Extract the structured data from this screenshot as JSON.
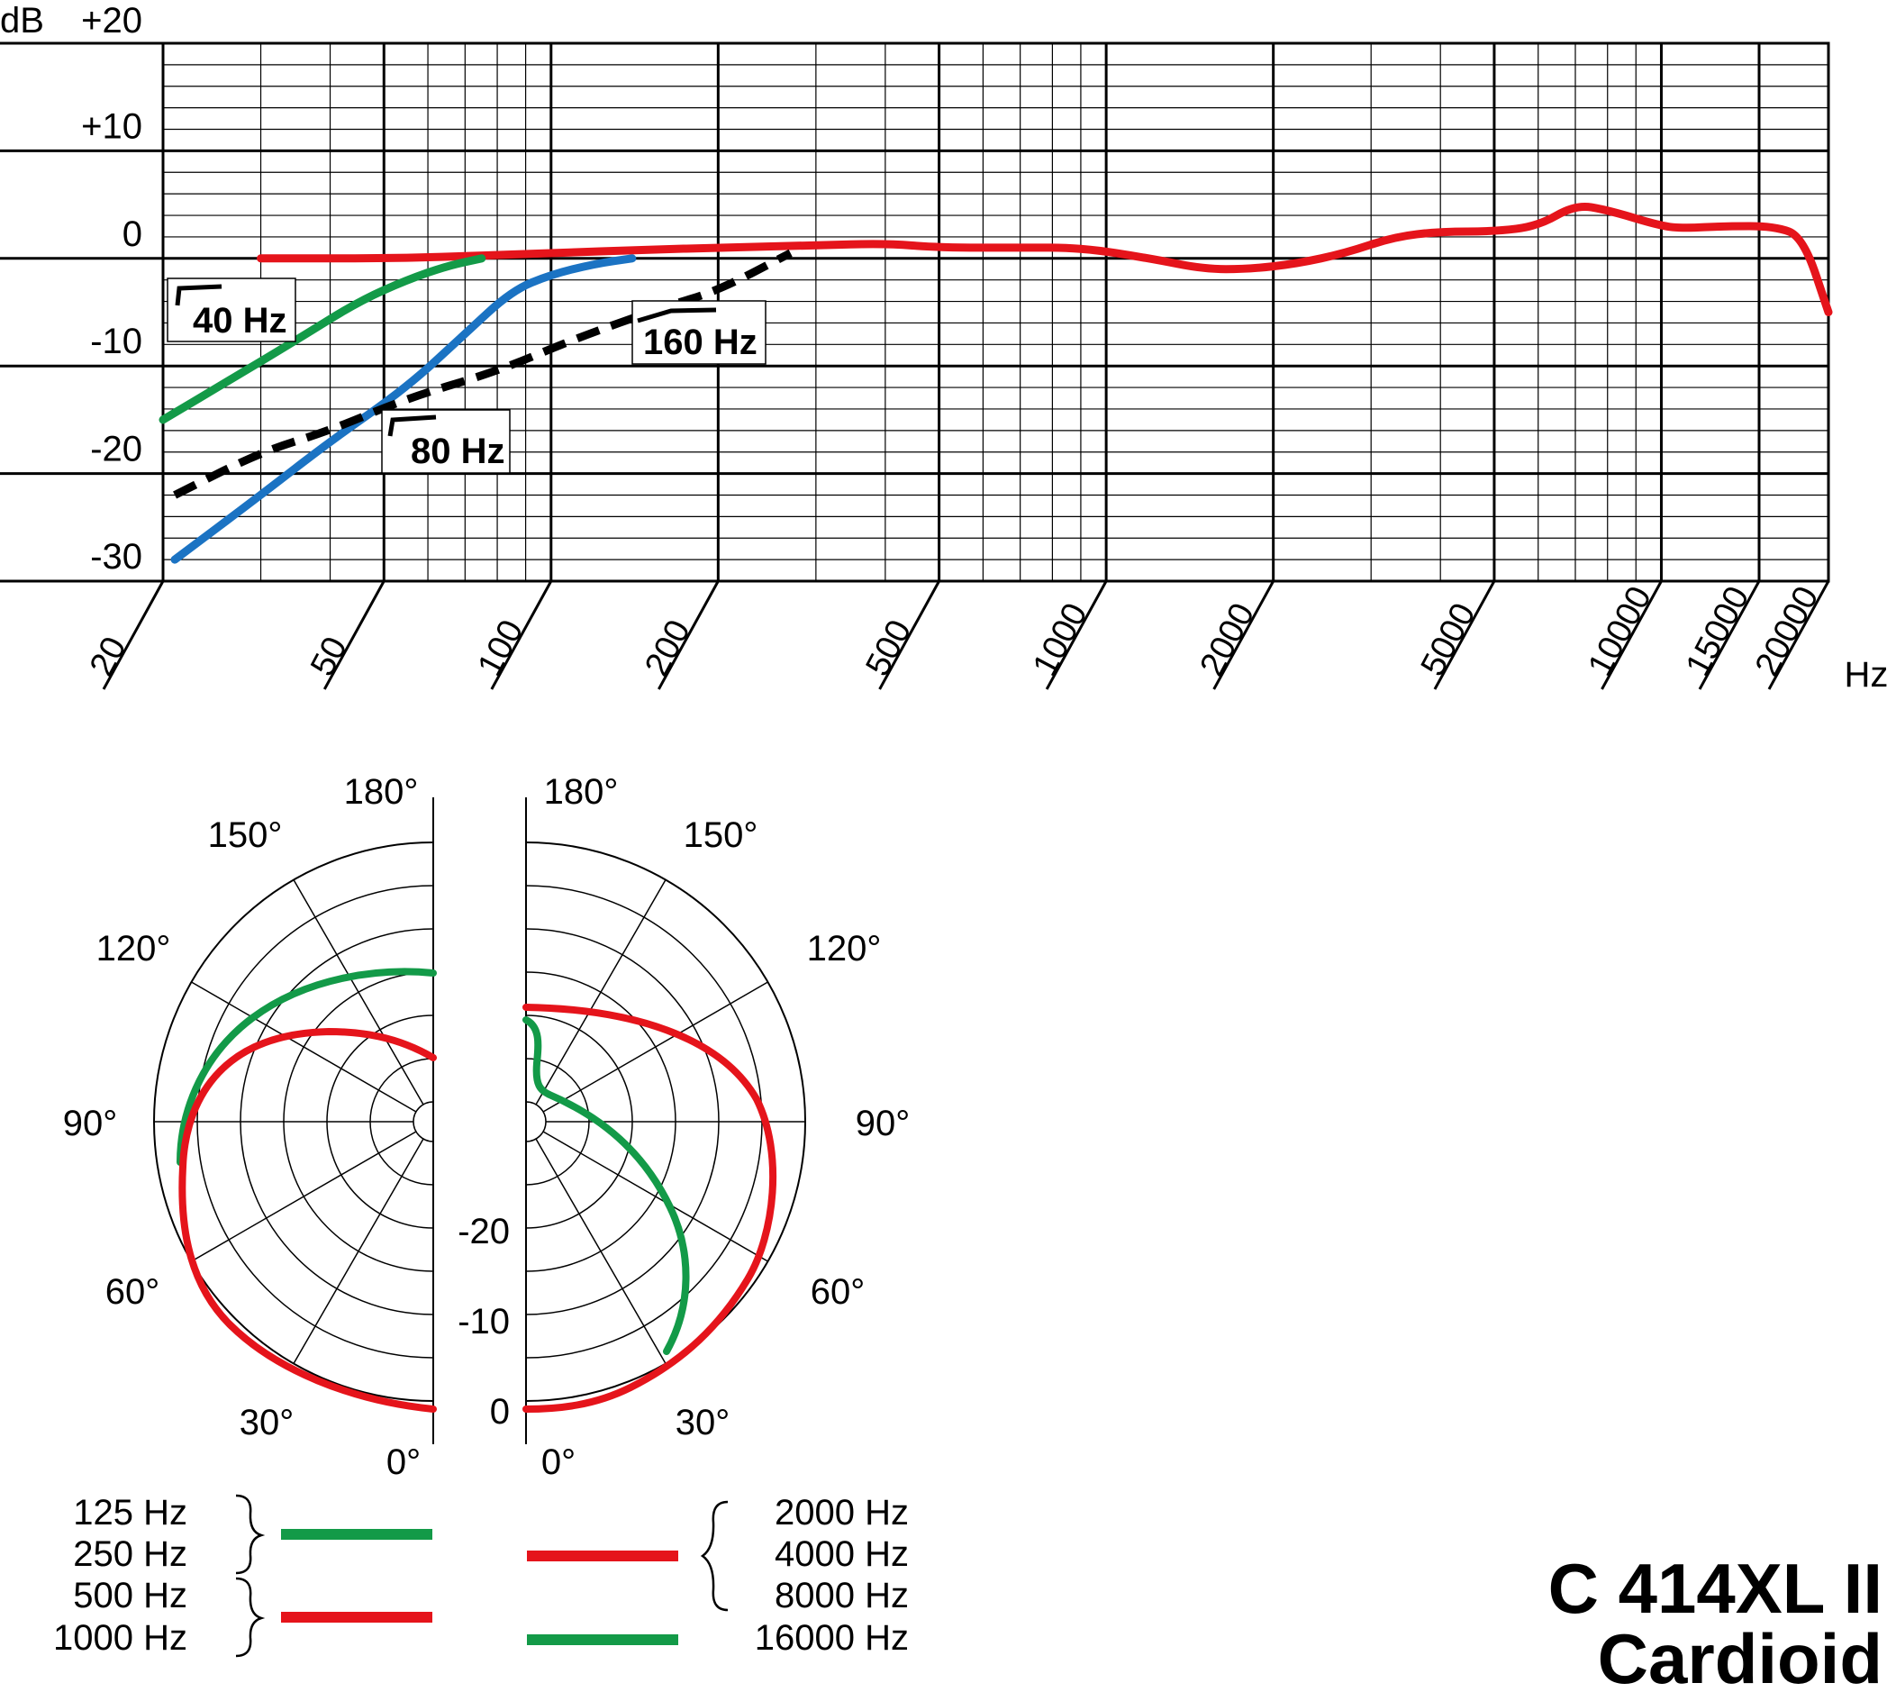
{
  "colors": {
    "red": "#e5141b",
    "green": "#139a48",
    "blue": "#1b73c3",
    "black": "#000000",
    "grid": "#000000"
  },
  "model": {
    "name": "C 414XL II",
    "pattern": "Cardioid"
  },
  "chart_data": [
    {
      "type": "line",
      "ylabel": "dB",
      "xlabel": "Hz",
      "x_scale": "log",
      "xlim": [
        20,
        20000
      ],
      "ylim": [
        -30,
        20
      ],
      "y_ticks": [
        {
          "v": 20,
          "label": "+20"
        },
        {
          "v": 10,
          "label": "+10"
        },
        {
          "v": 0,
          "label": "0"
        },
        {
          "v": -10,
          "label": "-10"
        },
        {
          "v": -20,
          "label": "-20"
        },
        {
          "v": -30,
          "label": "-30"
        }
      ],
      "x_ticks": [
        {
          "v": 20,
          "label": "20"
        },
        {
          "v": 50,
          "label": "50"
        },
        {
          "v": 100,
          "label": "100"
        },
        {
          "v": 200,
          "label": "200"
        },
        {
          "v": 500,
          "label": "500"
        },
        {
          "v": 1000,
          "label": "1000"
        },
        {
          "v": 2000,
          "label": "2000"
        },
        {
          "v": 5000,
          "label": "5000"
        },
        {
          "v": 10000,
          "label": "10000"
        },
        {
          "v": 15000,
          "label": "15000"
        },
        {
          "v": 20000,
          "label": "20000"
        }
      ],
      "grid": true,
      "series": [
        {
          "color_key": "red",
          "style": "solid",
          "points": [
            [
              30,
              0
            ],
            [
              50,
              0
            ],
            [
              70,
              0.2
            ],
            [
              100,
              0.5
            ],
            [
              150,
              0.8
            ],
            [
              200,
              1
            ],
            [
              300,
              1.2
            ],
            [
              400,
              1.4
            ],
            [
              500,
              1
            ],
            [
              700,
              1
            ],
            [
              900,
              1
            ],
            [
              1200,
              0
            ],
            [
              1500,
              -1
            ],
            [
              1800,
              -1
            ],
            [
              2200,
              -0.5
            ],
            [
              2700,
              0.5
            ],
            [
              3300,
              2
            ],
            [
              4000,
              2.5
            ],
            [
              5000,
              2.5
            ],
            [
              6000,
              3
            ],
            [
              7000,
              5
            ],
            [
              8000,
              4.5
            ],
            [
              10000,
              3
            ],
            [
              11000,
              2.8
            ],
            [
              13000,
              3
            ],
            [
              16000,
              3
            ],
            [
              18000,
              2
            ],
            [
              20000,
              -5
            ]
          ]
        },
        {
          "color_key": "green",
          "style": "solid",
          "points": [
            [
              20,
              -15
            ],
            [
              27,
              -11
            ],
            [
              35,
              -7.5
            ],
            [
              45,
              -4
            ],
            [
              55,
              -2
            ],
            [
              65,
              -0.7
            ],
            [
              75,
              0
            ]
          ]
        },
        {
          "color_key": "blue",
          "style": "solid",
          "points": [
            [
              21,
              -28
            ],
            [
              30,
              -22
            ],
            [
              40,
              -17
            ],
            [
              55,
              -12
            ],
            [
              70,
              -7
            ],
            [
              85,
              -3
            ],
            [
              100,
              -1.5
            ],
            [
              120,
              -0.5
            ],
            [
              140,
              0
            ]
          ]
        },
        {
          "color_key": "black",
          "style": "dashed",
          "points": [
            [
              21,
              -22
            ],
            [
              30,
              -18
            ],
            [
              40,
              -16
            ],
            [
              55,
              -13
            ],
            [
              80,
              -10.5
            ],
            [
              110,
              -7.5
            ],
            [
              160,
              -4.5
            ],
            [
              200,
              -3
            ],
            [
              270,
              0.5
            ]
          ]
        }
      ],
      "annotations": [
        {
          "label": "40 Hz",
          "x": 33,
          "y": -5.5
        },
        {
          "label": "80 Hz",
          "x": 80,
          "y": -18
        },
        {
          "label": "160 Hz",
          "x": 215,
          "y": -8
        }
      ]
    },
    {
      "type": "polar",
      "r_labels": [
        {
          "v": -20,
          "label": "-20"
        },
        {
          "v": -10,
          "label": "-10"
        },
        {
          "v": 0,
          "label": "0"
        }
      ],
      "angle_labels_left": [
        {
          "angle": 0,
          "label": "0°"
        },
        {
          "angle": 30,
          "label": "30°"
        },
        {
          "angle": 60,
          "label": "60°"
        },
        {
          "angle": 90,
          "label": "90°"
        },
        {
          "angle": 120,
          "label": "120°"
        },
        {
          "angle": 150,
          "label": "150°"
        },
        {
          "angle": 180,
          "label": "180°"
        }
      ],
      "angle_labels_right": [
        {
          "angle": 0,
          "label": "0°"
        },
        {
          "angle": 30,
          "label": "30°"
        },
        {
          "angle": 60,
          "label": "60°"
        },
        {
          "angle": 90,
          "label": "90°"
        },
        {
          "angle": 120,
          "label": "120°"
        },
        {
          "angle": 150,
          "label": "150°"
        },
        {
          "angle": 180,
          "label": "180°"
        }
      ],
      "legend": {
        "left": [
          {
            "labels": [
              "125 Hz",
              "250 Hz"
            ],
            "color_key": "green"
          },
          {
            "labels": [
              "500 Hz",
              "1000 Hz"
            ],
            "color_key": "red"
          }
        ],
        "right": [
          {
            "labels": [
              "2000 Hz",
              "4000 Hz",
              "8000 Hz"
            ],
            "color_key": "red"
          },
          {
            "labels": [
              "16000 Hz"
            ],
            "color_key": "green"
          }
        ]
      }
    }
  ]
}
